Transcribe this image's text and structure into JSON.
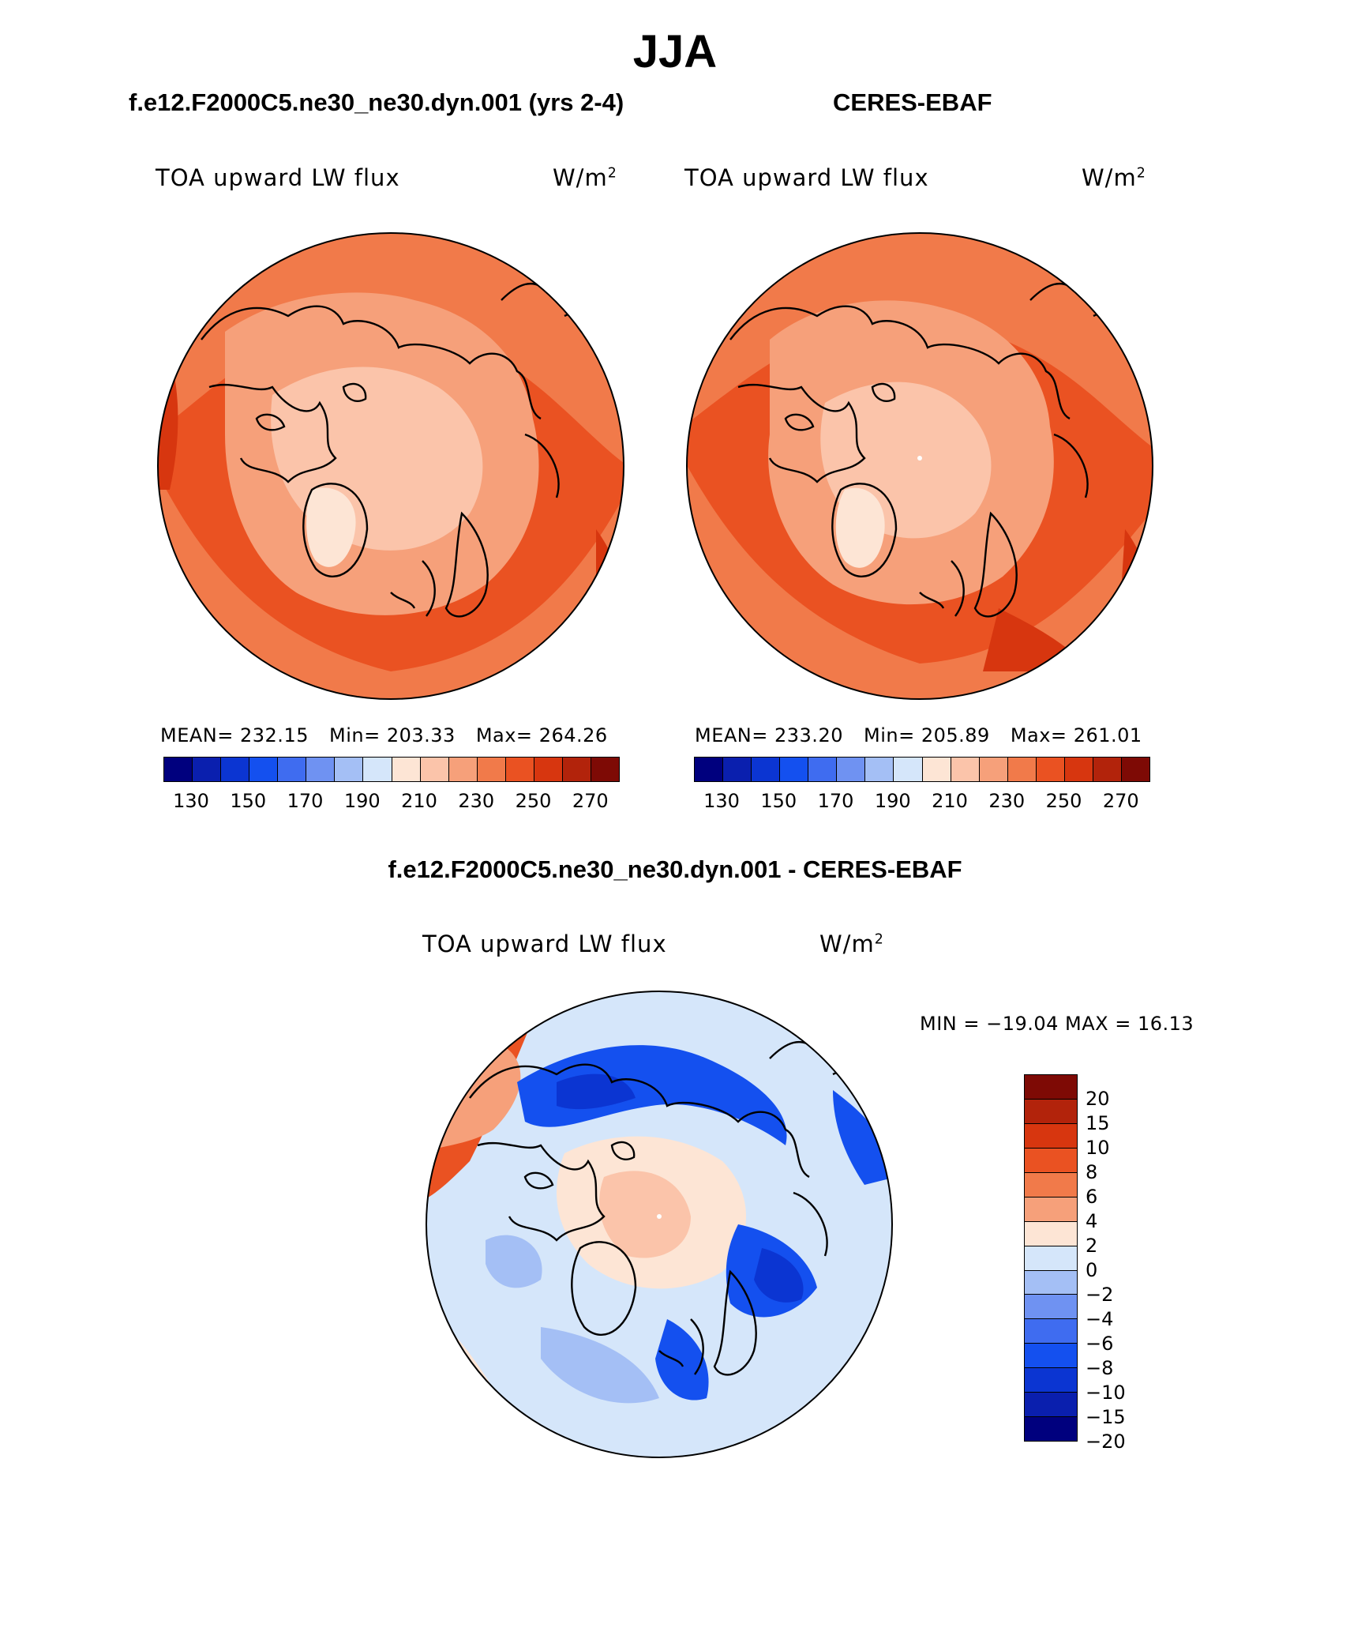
{
  "figure": {
    "season": "JJA",
    "variable": "TOA upward LW flux",
    "units_prefix": "W/m",
    "units_sup": "2"
  },
  "panels": [
    {
      "title": "f.e12.F2000C5.ne30_ne30.dyn.001 (yrs 2-4)",
      "stats": {
        "mean_label": "MEAN=",
        "mean": "232.15",
        "min_label": "Min=",
        "min": "203.33",
        "max_label": "Max=",
        "max": "264.26"
      }
    },
    {
      "title": "CERES-EBAF",
      "stats": {
        "mean_label": "MEAN=",
        "mean": "233.20",
        "min_label": "Min=",
        "min": "205.89",
        "max_label": "Max=",
        "max": "261.01"
      }
    }
  ],
  "diff_panel": {
    "title": "f.e12.F2000C5.ne30_ne30.dyn.001 - CERES-EBAF",
    "range_text": "MIN = −19.04 MAX =   16.13"
  },
  "colorbar_abs": {
    "colors": [
      "#00007e",
      "#0a1fae",
      "#0b35d2",
      "#1450ef",
      "#3f6cf0",
      "#6f92f2",
      "#a4bff5",
      "#d5e6fa",
      "#fde5d5",
      "#fbc4aa",
      "#f6a07a",
      "#f17a4a",
      "#ea5222",
      "#d7360f",
      "#b2230b",
      "#7e0a05"
    ],
    "tick_labels": [
      "130",
      "150",
      "170",
      "190",
      "210",
      "230",
      "250",
      "270"
    ]
  },
  "colorbar_diff": {
    "colors": [
      "#7e0a05",
      "#b2230b",
      "#d7360f",
      "#ea5222",
      "#f17a4a",
      "#f6a07a",
      "#fde5d5",
      "#d5e6fa",
      "#a4bff5",
      "#6f92f2",
      "#3f6cf0",
      "#1450ef",
      "#0b35d2",
      "#0a1fae",
      "#00007e"
    ],
    "tick_labels": [
      "20",
      "15",
      "10",
      "8",
      "6",
      "4",
      "2",
      "0",
      "−2",
      "−4",
      "−6",
      "−8",
      "−10",
      "−15",
      "−20"
    ]
  },
  "map_colors": {
    "ocean_warm": "#ea5222",
    "mid": "#f17a4a",
    "light": "#f6a07a",
    "pale": "#fbc4aa",
    "palest": "#fde5d5",
    "dark": "#d7360f",
    "blue_pale": "#d5e6fa",
    "blue_light": "#a4bff5",
    "blue_mid": "#6f92f2",
    "blue_strong": "#1450ef",
    "blue_deep": "#0b35d2"
  }
}
